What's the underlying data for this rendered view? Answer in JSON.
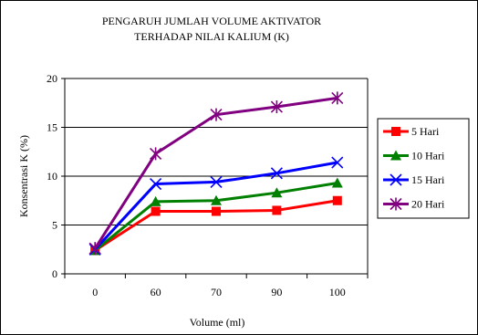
{
  "chart_data": {
    "type": "line",
    "title_lines": [
      "PENGARUH JUMLAH VOLUME AKTIVATOR",
      "TERHADAP NILAI KALIUM (K)"
    ],
    "xlabel": "Volume (ml)",
    "ylabel": "Konsentrasi K (%)",
    "categories": [
      "0",
      "60",
      "70",
      "90",
      "100"
    ],
    "ylim": [
      0,
      20
    ],
    "yticks": [
      0,
      5,
      10,
      15,
      20
    ],
    "grid": "horizontal",
    "legend_position": "right",
    "series": [
      {
        "name": "5 Hari",
        "color": "#ff0000",
        "marker": "square",
        "values": [
          2.4,
          6.4,
          6.4,
          6.5,
          7.5
        ]
      },
      {
        "name": "10 Hari",
        "color": "#008000",
        "marker": "triangle",
        "values": [
          2.4,
          7.4,
          7.5,
          8.3,
          9.3
        ]
      },
      {
        "name": "15 Hari",
        "color": "#0000ff",
        "marker": "x",
        "values": [
          2.5,
          9.2,
          9.4,
          10.3,
          11.4
        ]
      },
      {
        "name": "20 Hari",
        "color": "#800080",
        "marker": "star",
        "values": [
          2.6,
          12.3,
          16.3,
          17.1,
          18.0
        ]
      }
    ]
  }
}
